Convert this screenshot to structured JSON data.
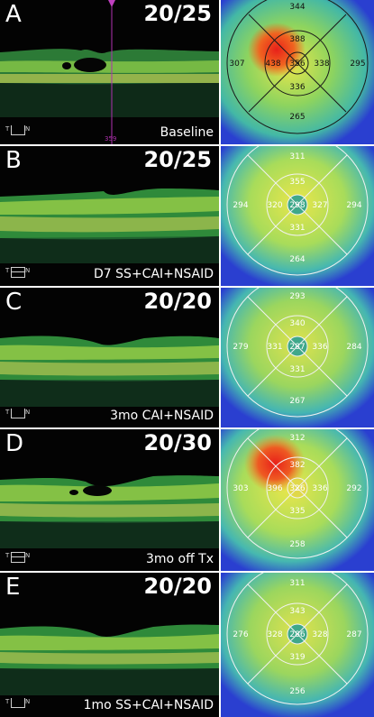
{
  "panels": [
    {
      "letter": "A",
      "acuity": "20/25",
      "caption": "Baseline",
      "map_values": {
        "center": "356",
        "inner_top": "388",
        "inner_nasal": "338",
        "inner_bottom": "336",
        "inner_temporal": "438",
        "outer_top": "344",
        "outer_nasal": "295",
        "outer_bottom": "265",
        "outer_temporal": "307"
      }
    },
    {
      "letter": "B",
      "acuity": "20/25",
      "caption": "D7 SS+CAI+NSAID",
      "map_values": {
        "center": "298",
        "inner_top": "355",
        "inner_nasal": "327",
        "inner_bottom": "331",
        "inner_temporal": "320",
        "outer_top": "311",
        "outer_nasal": "294",
        "outer_bottom": "264",
        "outer_temporal": "294"
      }
    },
    {
      "letter": "C",
      "acuity": "20/20",
      "caption": "3mo CAI+NSAID",
      "map_values": {
        "center": "287",
        "inner_top": "340",
        "inner_nasal": "336",
        "inner_bottom": "331",
        "inner_temporal": "331",
        "outer_top": "293",
        "outer_nasal": "284",
        "outer_bottom": "267",
        "outer_temporal": "279"
      }
    },
    {
      "letter": "D",
      "acuity": "20/30",
      "caption": "3mo off Tx",
      "map_values": {
        "center": "326",
        "inner_top": "382",
        "inner_nasal": "336",
        "inner_bottom": "335",
        "inner_temporal": "396",
        "outer_top": "312",
        "outer_nasal": "292",
        "outer_bottom": "258",
        "outer_temporal": "303"
      }
    },
    {
      "letter": "E",
      "acuity": "20/20",
      "caption": "1mo SS+CAI+NSAID",
      "map_values": {
        "center": "286",
        "inner_top": "343",
        "inner_nasal": "328",
        "inner_bottom": "319",
        "inner_temporal": "328",
        "outer_top": "311",
        "outer_nasal": "287",
        "outer_bottom": "256",
        "outer_temporal": "276"
      }
    }
  ],
  "axis_labels": {
    "temporal": "T",
    "nasal": "N"
  },
  "panel_a_marker": "359",
  "colors": {
    "retina_green": "#3ea34a",
    "retina_yellow": "#e3e04a",
    "map_red": "#e8201a",
    "map_yellow": "#e9e64b",
    "map_green": "#59c26b",
    "map_blue": "#2a2fd0"
  }
}
